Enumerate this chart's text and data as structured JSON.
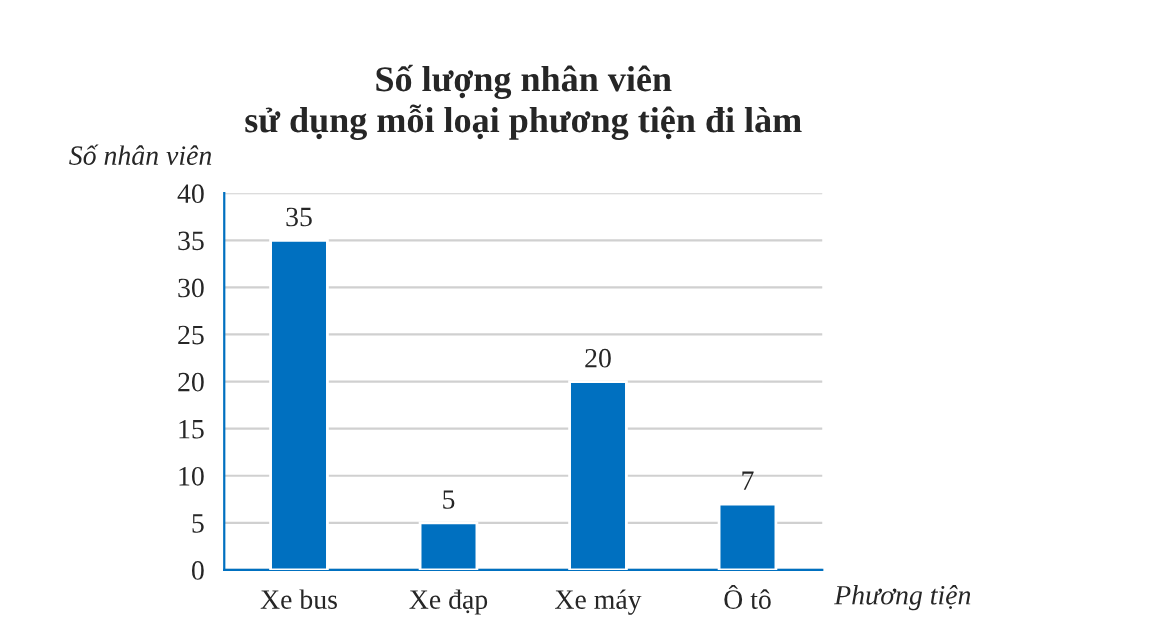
{
  "chart_data": {
    "type": "bar",
    "title": "Số lượng nhân viên\nsử dụng mỗi loại phương tiện đi làm",
    "xlabel": "Phương tiện",
    "ylabel": "Số nhân viên",
    "categories": [
      "Xe bus",
      "Xe đạp",
      "Xe máy",
      "Ô tô"
    ],
    "values": [
      35,
      5,
      20,
      7
    ],
    "color": "#0070c0",
    "ylim": [
      0,
      40
    ],
    "yticks": [
      0,
      5,
      10,
      15,
      20,
      25,
      30,
      35,
      40
    ],
    "grid": "y",
    "data_labels": true
  }
}
